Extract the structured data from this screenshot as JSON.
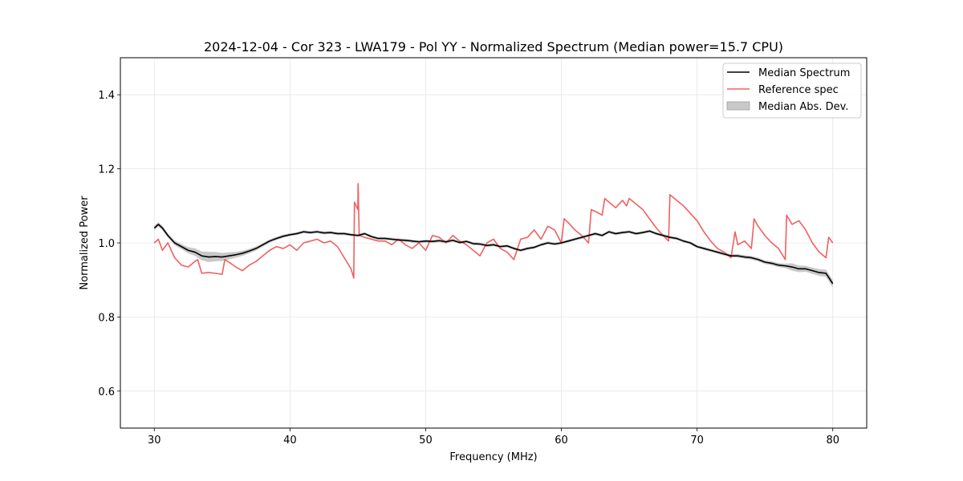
{
  "chart_data": {
    "type": "line",
    "title": "2024-12-04 - Cor 323 - LWA179 - Pol YY - Normalized Spectrum (Median power=15.7 CPU)",
    "xlabel": "Frequency (MHz)",
    "ylabel": "Normalized Power",
    "xlim": [
      27.5,
      82.5
    ],
    "ylim": [
      0.5,
      1.5
    ],
    "xticks": [
      30,
      40,
      50,
      60,
      70,
      80
    ],
    "xtick_labels": [
      "30",
      "40",
      "50",
      "60",
      "70",
      "80"
    ],
    "yticks": [
      0.6,
      0.8,
      1.0,
      1.2,
      1.4
    ],
    "ytick_labels": [
      "0.6",
      "0.8",
      "1.0",
      "1.2",
      "1.4"
    ],
    "grid": true,
    "legend_position": "top-right",
    "colors": {
      "median": "#000000",
      "reference": "#f06060",
      "mad": "#c8c8c8"
    },
    "series": [
      {
        "name": "Median Spectrum",
        "x": [
          30.0,
          30.3,
          30.6,
          31.0,
          31.5,
          32.0,
          32.5,
          33.0,
          33.5,
          34.0,
          34.5,
          35.0,
          35.5,
          36.0,
          36.5,
          37.0,
          37.5,
          38.0,
          38.5,
          39.0,
          39.5,
          40.0,
          40.5,
          41.0,
          41.5,
          42.0,
          42.5,
          43.0,
          43.5,
          44.0,
          44.5,
          45.0,
          45.5,
          46.0,
          46.5,
          47.0,
          47.5,
          48.0,
          48.5,
          49.0,
          49.5,
          50.0,
          50.5,
          51.0,
          51.5,
          52.0,
          52.5,
          53.0,
          53.5,
          54.0,
          54.5,
          55.0,
          55.5,
          56.0,
          56.5,
          57.0,
          57.5,
          58.0,
          58.5,
          59.0,
          59.5,
          60.0,
          60.5,
          61.0,
          61.5,
          62.0,
          62.5,
          63.0,
          63.5,
          64.0,
          64.5,
          65.0,
          65.5,
          66.0,
          66.5,
          67.0,
          67.5,
          68.0,
          68.5,
          69.0,
          69.5,
          70.0,
          70.5,
          71.0,
          71.5,
          72.0,
          72.5,
          73.0,
          73.5,
          74.0,
          74.5,
          75.0,
          75.5,
          76.0,
          76.5,
          77.0,
          77.5,
          78.0,
          78.5,
          79.0,
          79.5,
          80.0
        ],
        "values": [
          1.04,
          1.05,
          1.04,
          1.02,
          1.0,
          0.99,
          0.98,
          0.975,
          0.965,
          0.962,
          0.963,
          0.962,
          0.965,
          0.968,
          0.972,
          0.978,
          0.985,
          0.995,
          1.005,
          1.012,
          1.018,
          1.022,
          1.025,
          1.03,
          1.028,
          1.03,
          1.027,
          1.028,
          1.025,
          1.025,
          1.022,
          1.02,
          1.025,
          1.017,
          1.012,
          1.012,
          1.01,
          1.008,
          1.007,
          1.005,
          1.003,
          1.005,
          1.004,
          1.006,
          1.003,
          1.007,
          1.001,
          1.004,
          0.998,
          0.997,
          0.993,
          0.995,
          0.99,
          0.992,
          0.985,
          0.98,
          0.985,
          0.988,
          0.995,
          1.0,
          0.997,
          1.0,
          1.005,
          1.01,
          1.015,
          1.02,
          1.025,
          1.02,
          1.03,
          1.025,
          1.028,
          1.03,
          1.025,
          1.028,
          1.032,
          1.025,
          1.02,
          1.015,
          1.012,
          1.005,
          1.0,
          0.99,
          0.985,
          0.98,
          0.975,
          0.97,
          0.965,
          0.965,
          0.962,
          0.96,
          0.955,
          0.948,
          0.945,
          0.94,
          0.938,
          0.935,
          0.93,
          0.93,
          0.925,
          0.92,
          0.918,
          0.89
        ]
      },
      {
        "name": "Reference spec",
        "x": [
          30.0,
          30.3,
          30.6,
          31.0,
          31.5,
          32.0,
          32.5,
          33.0,
          33.2,
          33.5,
          34.0,
          34.5,
          35.0,
          35.2,
          35.5,
          36.0,
          36.5,
          37.0,
          37.5,
          38.0,
          38.5,
          39.0,
          39.5,
          40.0,
          40.5,
          41.0,
          41.5,
          42.0,
          42.5,
          43.0,
          43.5,
          44.0,
          44.5,
          44.7,
          44.75,
          45.0,
          45.02,
          45.1,
          45.5,
          46.0,
          46.5,
          47.0,
          47.5,
          48.0,
          48.5,
          49.0,
          49.5,
          50.0,
          50.5,
          51.0,
          51.5,
          52.0,
          52.5,
          53.0,
          53.5,
          54.0,
          54.5,
          55.0,
          55.5,
          56.0,
          56.5,
          57.0,
          57.5,
          58.0,
          58.5,
          59.0,
          59.5,
          60.0,
          60.2,
          60.5,
          61.0,
          61.5,
          62.0,
          62.2,
          62.5,
          63.0,
          63.2,
          63.5,
          64.0,
          64.5,
          64.8,
          65.0,
          65.5,
          66.0,
          66.5,
          67.0,
          67.5,
          67.9,
          68.0,
          68.5,
          69.0,
          69.5,
          70.0,
          70.5,
          71.0,
          71.5,
          72.0,
          72.5,
          72.8,
          73.0,
          73.5,
          74.0,
          74.2,
          74.5,
          75.0,
          75.5,
          76.0,
          76.5,
          76.6,
          77.0,
          77.5,
          78.0,
          78.5,
          79.0,
          79.5,
          79.7,
          80.0
        ],
        "values": [
          1.0,
          1.01,
          0.98,
          1.0,
          0.96,
          0.94,
          0.935,
          0.95,
          0.955,
          0.918,
          0.92,
          0.918,
          0.915,
          0.955,
          0.948,
          0.935,
          0.925,
          0.94,
          0.95,
          0.965,
          0.98,
          0.99,
          0.985,
          0.995,
          0.98,
          1.0,
          1.005,
          1.01,
          1.0,
          1.005,
          0.99,
          0.96,
          0.93,
          0.905,
          1.11,
          1.09,
          1.16,
          1.02,
          1.015,
          1.01,
          1.005,
          1.005,
          0.995,
          1.01,
          0.995,
          0.985,
          1.0,
          0.98,
          1.02,
          1.015,
          1.0,
          1.02,
          1.005,
          0.995,
          0.98,
          0.965,
          1.0,
          1.01,
          0.985,
          0.975,
          0.955,
          1.01,
          1.015,
          1.035,
          1.01,
          1.045,
          1.035,
          1.0,
          1.065,
          1.055,
          1.035,
          1.02,
          1.0,
          1.09,
          1.085,
          1.075,
          1.12,
          1.11,
          1.095,
          1.115,
          1.1,
          1.12,
          1.105,
          1.09,
          1.065,
          1.04,
          1.02,
          1.005,
          1.13,
          1.115,
          1.1,
          1.08,
          1.06,
          1.03,
          1.005,
          0.985,
          0.975,
          0.96,
          1.03,
          0.995,
          1.005,
          0.985,
          1.065,
          1.045,
          1.02,
          1.0,
          0.985,
          0.955,
          1.075,
          1.05,
          1.06,
          1.035,
          1.0,
          0.975,
          0.96,
          1.015,
          1.0
        ]
      },
      {
        "name": "Median Abs. Dev.",
        "x": [
          30.0,
          31.0,
          32.0,
          33.0,
          34.0,
          35.0,
          36.0,
          37.0,
          38.0,
          40.0,
          45.0,
          50.0,
          55.0,
          60.0,
          65.0,
          70.0,
          75.0,
          76.7,
          77.0,
          78.0,
          79.0,
          80.0
        ],
        "values": [
          0.006,
          0.006,
          0.007,
          0.01,
          0.014,
          0.011,
          0.008,
          0.006,
          0.005,
          0.004,
          0.004,
          0.004,
          0.004,
          0.004,
          0.004,
          0.004,
          0.005,
          0.006,
          0.01,
          0.008,
          0.009,
          0.01
        ]
      }
    ]
  }
}
